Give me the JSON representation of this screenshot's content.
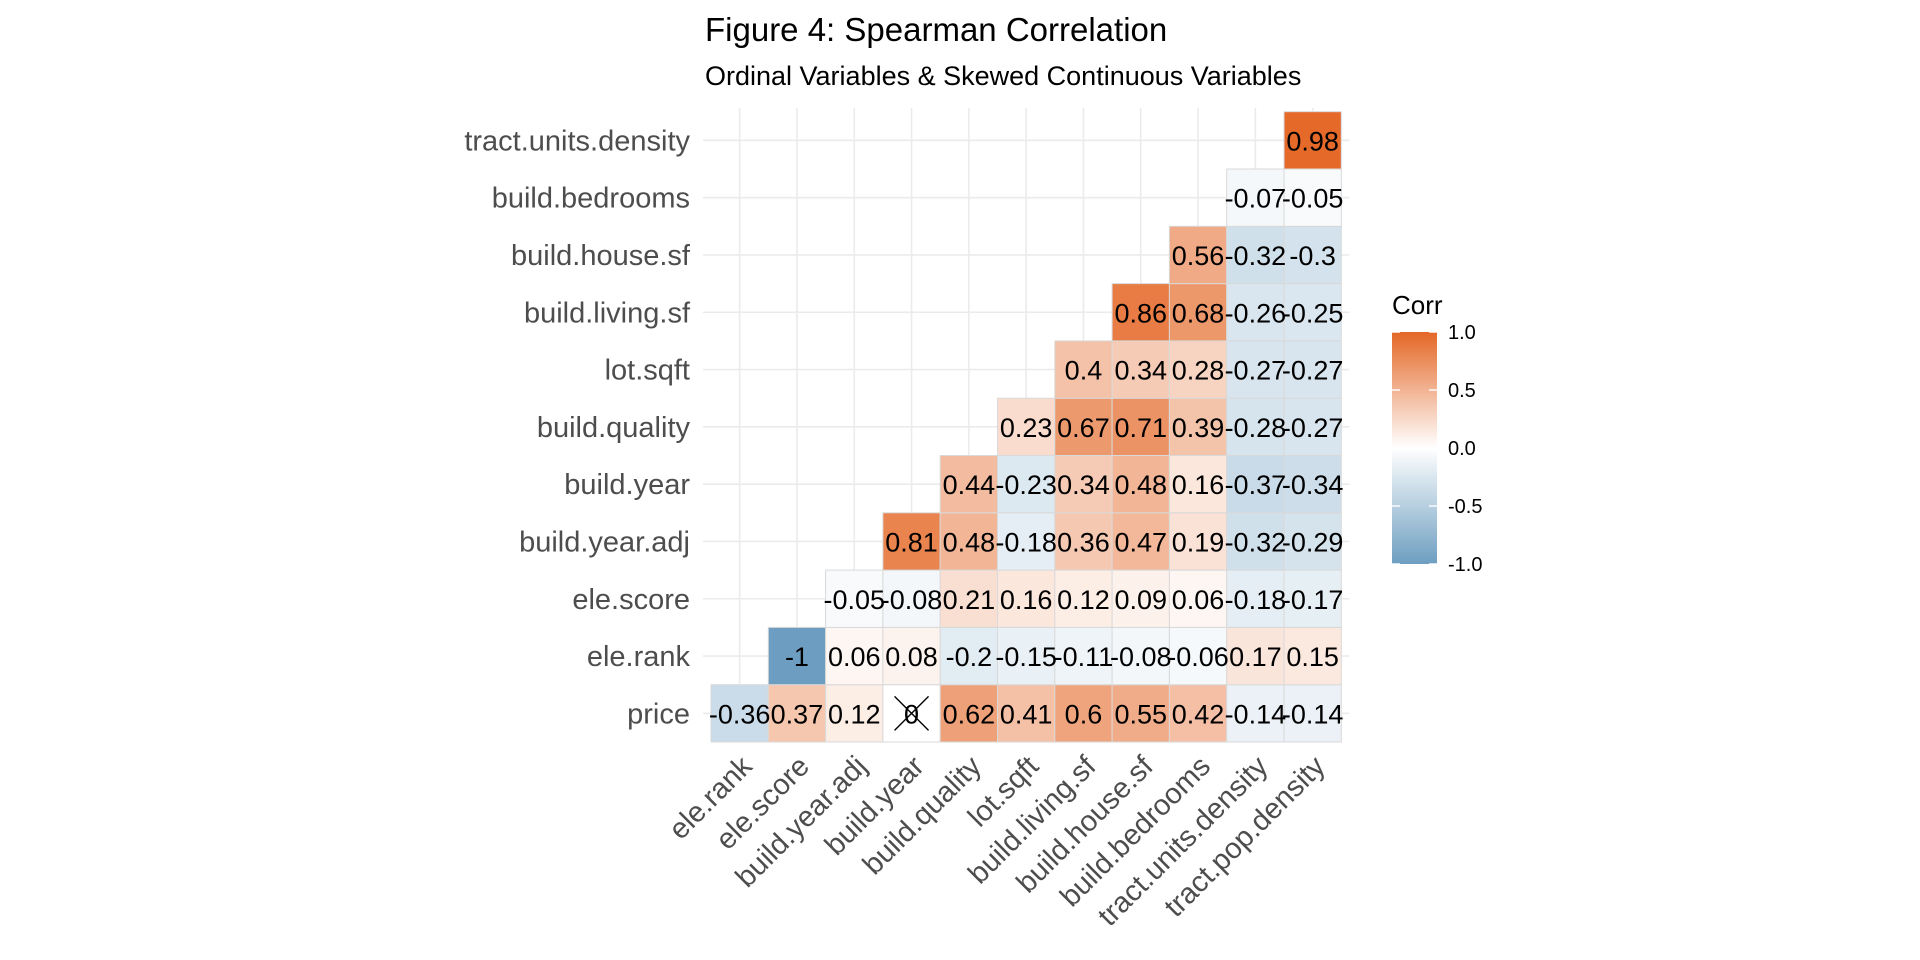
{
  "chart_data": {
    "type": "heatmap",
    "title": "Figure 4: Spearman Correlation",
    "subtitle": "Ordinal Variables & Skewed Continuous Variables",
    "x_categories": [
      "ele.rank",
      "ele.score",
      "build.year.adj",
      "build.year",
      "build.quality",
      "lot.sqft",
      "build.living.sf",
      "build.house.sf",
      "build.bedrooms",
      "tract.units.density",
      "tract.pop.density"
    ],
    "y_categories": [
      "price",
      "ele.rank",
      "ele.score",
      "build.year.adj",
      "build.year",
      "build.quality",
      "lot.sqft",
      "build.living.sf",
      "build.house.sf",
      "build.bedrooms",
      "tract.units.density"
    ],
    "rows": [
      {
        "y": "price",
        "values": [
          -0.36,
          0.37,
          0.12,
          0,
          0.62,
          0.41,
          0.6,
          0.55,
          0.42,
          -0.14,
          -0.14
        ],
        "labels": [
          "-0.36",
          "0.37",
          "0.12",
          "0",
          "0.62",
          "0.41",
          "0.6",
          "0.55",
          "0.42",
          "-0.14",
          "-0.14"
        ]
      },
      {
        "y": "ele.rank",
        "values": [
          null,
          -1,
          0.06,
          0.08,
          -0.2,
          -0.15,
          -0.11,
          -0.08,
          -0.06,
          0.17,
          0.15
        ],
        "labels": [
          null,
          "-1",
          "0.06",
          "0.08",
          "-0.2",
          "-0.15",
          "-0.11",
          "-0.08",
          "-0.06",
          "0.17",
          "0.15"
        ]
      },
      {
        "y": "ele.score",
        "values": [
          null,
          null,
          -0.05,
          -0.08,
          0.21,
          0.16,
          0.12,
          0.09,
          0.06,
          -0.18,
          -0.17
        ],
        "labels": [
          null,
          null,
          "-0.05",
          "-0.08",
          "0.21",
          "0.16",
          "0.12",
          "0.09",
          "0.06",
          "-0.18",
          "-0.17"
        ]
      },
      {
        "y": "build.year.adj",
        "values": [
          null,
          null,
          null,
          0.81,
          0.48,
          -0.18,
          0.36,
          0.47,
          0.19,
          -0.32,
          -0.29
        ],
        "labels": [
          null,
          null,
          null,
          "0.81",
          "0.48",
          "-0.18",
          "0.36",
          "0.47",
          "0.19",
          "-0.32",
          "-0.29"
        ]
      },
      {
        "y": "build.year",
        "values": [
          null,
          null,
          null,
          null,
          0.44,
          -0.23,
          0.34,
          0.48,
          0.16,
          -0.37,
          -0.34
        ],
        "labels": [
          null,
          null,
          null,
          null,
          "0.44",
          "-0.23",
          "0.34",
          "0.48",
          "0.16",
          "-0.37",
          "-0.34"
        ]
      },
      {
        "y": "build.quality",
        "values": [
          null,
          null,
          null,
          null,
          null,
          0.23,
          0.67,
          0.71,
          0.39,
          -0.28,
          -0.27
        ],
        "labels": [
          null,
          null,
          null,
          null,
          null,
          "0.23",
          "0.67",
          "0.71",
          "0.39",
          "-0.28",
          "-0.27"
        ]
      },
      {
        "y": "lot.sqft",
        "values": [
          null,
          null,
          null,
          null,
          null,
          null,
          0.4,
          0.34,
          0.28,
          -0.27,
          -0.27
        ],
        "labels": [
          null,
          null,
          null,
          null,
          null,
          null,
          "0.4",
          "0.34",
          "0.28",
          "-0.27",
          "-0.27"
        ]
      },
      {
        "y": "build.living.sf",
        "values": [
          null,
          null,
          null,
          null,
          null,
          null,
          null,
          0.86,
          0.68,
          -0.26,
          -0.25
        ],
        "labels": [
          null,
          null,
          null,
          null,
          null,
          null,
          null,
          "0.86",
          "0.68",
          "-0.26",
          "-0.25"
        ]
      },
      {
        "y": "build.house.sf",
        "values": [
          null,
          null,
          null,
          null,
          null,
          null,
          null,
          null,
          0.56,
          -0.32,
          -0.3
        ],
        "labels": [
          null,
          null,
          null,
          null,
          null,
          null,
          null,
          null,
          "0.56",
          "-0.32",
          "-0.3"
        ]
      },
      {
        "y": "build.bedrooms",
        "values": [
          null,
          null,
          null,
          null,
          null,
          null,
          null,
          null,
          null,
          -0.07,
          -0.05
        ],
        "labels": [
          null,
          null,
          null,
          null,
          null,
          null,
          null,
          null,
          null,
          "-0.07",
          "-0.05"
        ]
      },
      {
        "y": "tract.units.density",
        "values": [
          null,
          null,
          null,
          null,
          null,
          null,
          null,
          null,
          null,
          null,
          0.98
        ],
        "labels": [
          null,
          null,
          null,
          null,
          null,
          null,
          null,
          null,
          null,
          null,
          "0.98"
        ]
      }
    ],
    "insignificant_marked": [
      {
        "y": "price",
        "x": "build.year"
      }
    ],
    "legend": {
      "title": "Corr",
      "ticks": [
        1.0,
        0.5,
        0.0,
        -0.5,
        -1.0
      ],
      "tick_labels": [
        "1.0",
        "0.5",
        "0.0",
        "-0.5",
        "-1.0"
      ],
      "placement": "right"
    },
    "colors": {
      "low": "#6d9ec1",
      "mid": "#ffffff",
      "high": "#e46726",
      "grid": "#ebebeb",
      "tile_border": "#d9d9d9"
    },
    "value_range": [
      -1,
      1
    ],
    "grid": true
  }
}
